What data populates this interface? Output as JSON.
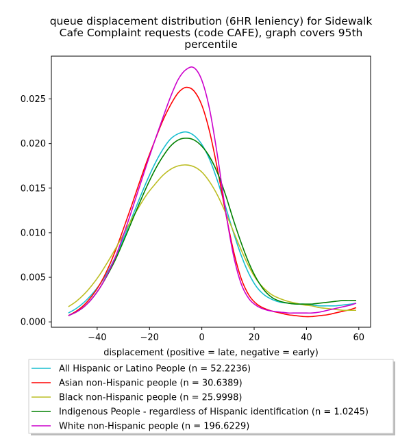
{
  "chart_data": {
    "type": "line",
    "title": "queue displacement distribution (6HR leniency) for Sidewalk\nCafe Complaint  requests (code CAFE), graph covers 95th\npercentile",
    "xlabel": "displacement (positive = late, negative = early)",
    "ylabel": "",
    "xlim": [
      -57.5,
      64.5
    ],
    "ylim": [
      -0.0006,
      0.0298
    ],
    "xticks": [
      -40,
      -20,
      0,
      20,
      40,
      60
    ],
    "xtick_labels": [
      "−40",
      "−20",
      "0",
      "20",
      "40",
      "60"
    ],
    "yticks": [
      0.0,
      0.005,
      0.01,
      0.015,
      0.02,
      0.025
    ],
    "ytick_labels": [
      "0.000",
      "0.005",
      "0.010",
      "0.015",
      "0.020",
      "0.025"
    ],
    "grid": false,
    "legend_position": "below",
    "x": [
      -51,
      -48,
      -45,
      -42,
      -39,
      -36,
      -33,
      -30,
      -27,
      -24,
      -21,
      -18,
      -15,
      -12,
      -9,
      -6,
      -3,
      0,
      3,
      6,
      9,
      12,
      15,
      18,
      21,
      24,
      27,
      30,
      33,
      36,
      39,
      42,
      45,
      48,
      51,
      54,
      57,
      59
    ],
    "series": [
      {
        "name": "All Hispanic or Latino People (n = 52.2236)",
        "color": "#17becf",
        "values": [
          0.001,
          0.0015,
          0.0022,
          0.0031,
          0.0042,
          0.0056,
          0.0073,
          0.0093,
          0.0115,
          0.0137,
          0.0158,
          0.0177,
          0.0193,
          0.0205,
          0.0211,
          0.0213,
          0.0209,
          0.0199,
          0.0182,
          0.0158,
          0.013,
          0.0101,
          0.0075,
          0.0054,
          0.0039,
          0.003,
          0.0025,
          0.0022,
          0.0021,
          0.002,
          0.002,
          0.0019,
          0.0018,
          0.0018,
          0.0018,
          0.0019,
          0.002,
          0.0021
        ]
      },
      {
        "name": "Asian non-Hispanic people (n = 30.6389)",
        "color": "#ff0000",
        "values": [
          0.0007,
          0.0012,
          0.0019,
          0.0029,
          0.0042,
          0.0059,
          0.008,
          0.0104,
          0.0129,
          0.0155,
          0.018,
          0.0203,
          0.0225,
          0.0243,
          0.0257,
          0.0263,
          0.0259,
          0.0243,
          0.0213,
          0.0171,
          0.0124,
          0.0081,
          0.0049,
          0.003,
          0.002,
          0.0015,
          0.0012,
          0.001,
          0.0008,
          0.0007,
          0.0006,
          0.0006,
          0.0007,
          0.0008,
          0.001,
          0.0012,
          0.0014,
          0.0016
        ]
      },
      {
        "name": "Black non-Hispanic people (n = 25.9998)",
        "color": "#bcbd22",
        "values": [
          0.0017,
          0.0023,
          0.0031,
          0.0041,
          0.0053,
          0.0067,
          0.0082,
          0.0098,
          0.0114,
          0.0129,
          0.0143,
          0.0154,
          0.0164,
          0.0171,
          0.0175,
          0.0176,
          0.0174,
          0.0168,
          0.0157,
          0.0142,
          0.0123,
          0.0102,
          0.0081,
          0.0062,
          0.0047,
          0.0037,
          0.003,
          0.0026,
          0.0023,
          0.0021,
          0.0019,
          0.0018,
          0.0016,
          0.0015,
          0.0014,
          0.0013,
          0.0013,
          0.0013
        ]
      },
      {
        "name": "Indigenous People - regardless of Hispanic identification (n = 1.0245)",
        "color": "#008000",
        "values": [
          0.0007,
          0.0011,
          0.0017,
          0.0026,
          0.0038,
          0.0053,
          0.007,
          0.009,
          0.0111,
          0.0132,
          0.0152,
          0.017,
          0.0185,
          0.0197,
          0.0204,
          0.0206,
          0.0204,
          0.0197,
          0.0185,
          0.0167,
          0.0143,
          0.0115,
          0.0089,
          0.0066,
          0.0048,
          0.0035,
          0.0027,
          0.0023,
          0.0021,
          0.002,
          0.002,
          0.002,
          0.0021,
          0.0022,
          0.0023,
          0.0024,
          0.0024,
          0.0024
        ]
      },
      {
        "name": "White non-Hispanic people (n = 196.6229)",
        "color": "#cc00cc",
        "values": [
          0.0007,
          0.0011,
          0.0017,
          0.0026,
          0.0038,
          0.0054,
          0.0073,
          0.0097,
          0.0123,
          0.015,
          0.0177,
          0.0203,
          0.0228,
          0.0252,
          0.0272,
          0.0283,
          0.0285,
          0.0271,
          0.0238,
          0.0186,
          0.0126,
          0.0076,
          0.0043,
          0.0026,
          0.0018,
          0.0014,
          0.0012,
          0.0011,
          0.001,
          0.001,
          0.001,
          0.001,
          0.0011,
          0.0013,
          0.0015,
          0.0017,
          0.0019,
          0.0021
        ]
      }
    ]
  }
}
